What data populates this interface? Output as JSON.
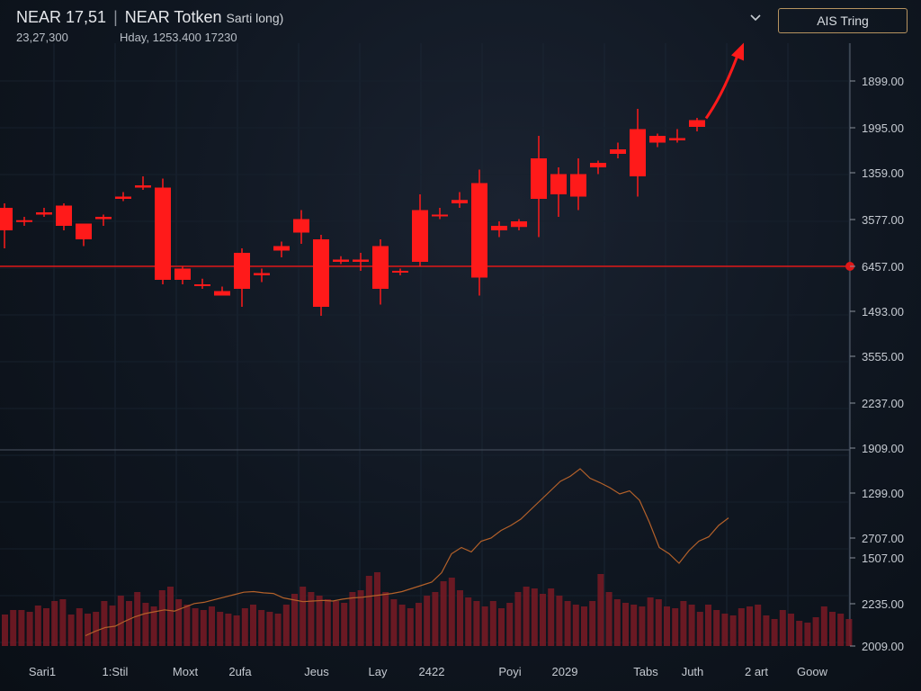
{
  "header": {
    "symbol": "NEAR 17,51",
    "name": "NEAR Totken",
    "suffix": "Sarti long)",
    "sub_left": "23,27,300",
    "sub_right": "Hday, 1253.400 17230",
    "trade_label": "AIS Tring"
  },
  "icons": {
    "dropdown": "chevron-down-icon"
  },
  "colors": {
    "candle": "#ff1a1a",
    "ref_line": "#e01818",
    "volume": "#7a1a24",
    "line": "#b4612a",
    "accent": "#b6935f"
  },
  "price_axis_labels": [
    "1899.00",
    "1995.00",
    "1359.00",
    "3577.00",
    "6457.00",
    "1493.00",
    "3555.00",
    "2237.00",
    "1909.00"
  ],
  "lower_axis_labels": [
    "1299.00",
    "2707.00",
    "1507.00",
    "2235.00",
    "2009.00"
  ],
  "x_labels": [
    "Sari1",
    "1:Stil",
    "Moxt",
    "2ufa",
    "Jeus",
    "Lay",
    "2422",
    "Poyi",
    "2029",
    "Tabs",
    "Juth",
    "2 art",
    "Goow"
  ],
  "highlight_x_label": "2029",
  "chart_data": {
    "type": "candlestick",
    "reference_level": "6457.00",
    "candles": [
      {
        "o": 2.6,
        "h": 2.8,
        "l": 0.8,
        "c": 1.6
      },
      {
        "o": 2.0,
        "h": 2.2,
        "l": 1.8,
        "c": 2.05
      },
      {
        "o": 2.4,
        "h": 2.6,
        "l": 2.2,
        "c": 2.3
      },
      {
        "o": 1.8,
        "h": 2.8,
        "l": 1.6,
        "c": 2.7
      },
      {
        "o": 1.9,
        "h": 1.9,
        "l": 0.9,
        "c": 1.2
      },
      {
        "o": 2.1,
        "h": 2.3,
        "l": 1.8,
        "c": 2.2
      },
      {
        "o": 3.0,
        "h": 3.3,
        "l": 2.9,
        "c": 3.1
      },
      {
        "o": 3.6,
        "h": 4.0,
        "l": 3.4,
        "c": 3.5
      },
      {
        "o": 3.5,
        "h": 3.9,
        "l": -0.8,
        "c": -0.6
      },
      {
        "o": -0.1,
        "h": 0.0,
        "l": -0.8,
        "c": -0.6
      },
      {
        "o": -0.8,
        "h": -0.55,
        "l": -1.0,
        "c": -0.85
      },
      {
        "o": -1.1,
        "h": -0.9,
        "l": -1.3,
        "c": -1.3
      },
      {
        "o": -1.0,
        "h": 0.8,
        "l": -1.8,
        "c": 0.6
      },
      {
        "o": -0.3,
        "h": -0.1,
        "l": -0.7,
        "c": -0.4
      },
      {
        "o": 0.9,
        "h": 1.1,
        "l": 0.4,
        "c": 0.7
      },
      {
        "o": 2.1,
        "h": 2.5,
        "l": 1.0,
        "c": 1.5
      },
      {
        "o": 1.2,
        "h": 1.4,
        "l": -2.2,
        "c": -1.8
      },
      {
        "o": 0.3,
        "h": 0.45,
        "l": 0.1,
        "c": 0.2
      },
      {
        "o": 0.2,
        "h": 0.6,
        "l": -0.2,
        "c": 0.3
      },
      {
        "o": 0.9,
        "h": 1.2,
        "l": -1.7,
        "c": -1.0
      },
      {
        "o": -0.2,
        "h": -0.1,
        "l": -0.4,
        "c": -0.25
      },
      {
        "o": 0.2,
        "h": 3.2,
        "l": 0.0,
        "c": 2.5
      },
      {
        "o": 2.3,
        "h": 2.6,
        "l": 2.1,
        "c": 2.25
      },
      {
        "o": 2.8,
        "h": 3.3,
        "l": 2.6,
        "c": 2.95
      },
      {
        "o": 3.7,
        "h": 4.3,
        "l": -1.3,
        "c": -0.5
      },
      {
        "o": 1.6,
        "h": 2.0,
        "l": 1.3,
        "c": 1.8
      },
      {
        "o": 2.0,
        "h": 2.1,
        "l": 1.6,
        "c": 1.75
      },
      {
        "o": 3.0,
        "h": 5.8,
        "l": 1.3,
        "c": 4.8
      },
      {
        "o": 3.2,
        "h": 4.4,
        "l": 2.2,
        "c": 4.1
      },
      {
        "o": 4.1,
        "h": 4.8,
        "l": 2.5,
        "c": 3.1
      },
      {
        "o": 4.4,
        "h": 4.7,
        "l": 4.1,
        "c": 4.6
      },
      {
        "o": 5.2,
        "h": 5.5,
        "l": 4.8,
        "c": 5.0
      },
      {
        "o": 4.0,
        "h": 7.0,
        "l": 3.1,
        "c": 6.1
      },
      {
        "o": 5.5,
        "h": 5.9,
        "l": 5.3,
        "c": 5.8
      },
      {
        "o": 5.6,
        "h": 6.1,
        "l": 5.5,
        "c": 5.7
      },
      {
        "o": 6.2,
        "h": 6.6,
        "l": 6.0,
        "c": 6.5
      }
    ],
    "line": [
      0.05,
      0.12,
      0.18,
      0.2,
      0.28,
      0.35,
      0.4,
      0.43,
      0.46,
      0.44,
      0.5,
      0.56,
      0.58,
      0.62,
      0.66,
      0.7,
      0.74,
      0.75,
      0.73,
      0.72,
      0.65,
      0.62,
      0.59,
      0.6,
      0.61,
      0.6,
      0.63,
      0.65,
      0.66,
      0.68,
      0.7,
      0.72,
      0.75,
      0.8,
      0.85,
      0.9,
      1.05,
      1.35,
      1.45,
      1.38,
      1.55,
      1.6,
      1.72,
      1.8,
      1.9,
      2.05,
      2.2,
      2.35,
      2.5,
      2.58,
      2.7,
      2.55,
      2.48,
      2.4,
      2.3,
      2.35,
      2.2,
      1.85,
      1.45,
      1.35,
      1.2,
      1.4,
      1.55,
      1.62,
      1.8,
      1.92
    ],
    "volume": [
      0.35,
      0.4,
      0.4,
      0.38,
      0.45,
      0.42,
      0.5,
      0.52,
      0.35,
      0.42,
      0.36,
      0.38,
      0.5,
      0.45,
      0.56,
      0.5,
      0.6,
      0.48,
      0.44,
      0.62,
      0.66,
      0.52,
      0.46,
      0.42,
      0.4,
      0.44,
      0.38,
      0.36,
      0.34,
      0.42,
      0.46,
      0.4,
      0.38,
      0.36,
      0.46,
      0.58,
      0.66,
      0.6,
      0.56,
      0.52,
      0.5,
      0.48,
      0.6,
      0.62,
      0.78,
      0.82,
      0.6,
      0.52,
      0.46,
      0.42,
      0.48,
      0.56,
      0.6,
      0.72,
      0.76,
      0.62,
      0.54,
      0.5,
      0.44,
      0.5,
      0.42,
      0.48,
      0.6,
      0.66,
      0.64,
      0.58,
      0.64,
      0.56,
      0.5,
      0.46,
      0.44,
      0.5,
      0.8,
      0.6,
      0.52,
      0.48,
      0.46,
      0.44,
      0.54,
      0.52,
      0.44,
      0.42,
      0.5,
      0.46,
      0.38,
      0.46,
      0.4,
      0.36,
      0.34,
      0.42,
      0.44,
      0.46,
      0.34,
      0.3,
      0.4,
      0.36,
      0.28,
      0.26,
      0.32,
      0.44,
      0.38,
      0.36,
      0.3
    ]
  }
}
